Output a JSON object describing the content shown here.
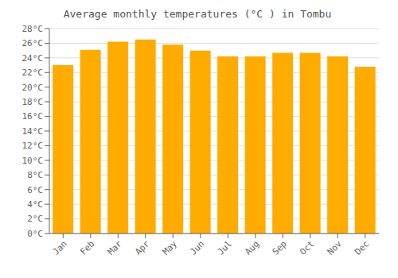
{
  "chart_data": {
    "type": "bar",
    "title": "Average monthly temperatures (°C ) in Tombu",
    "categories": [
      "Jan",
      "Feb",
      "Mar",
      "Apr",
      "May",
      "Jun",
      "Jul",
      "Aug",
      "Sep",
      "Oct",
      "Nov",
      "Dec"
    ],
    "values": [
      23.0,
      25.1,
      26.2,
      26.5,
      25.8,
      25.0,
      24.2,
      24.2,
      24.7,
      24.7,
      24.2,
      22.8
    ],
    "color": "#FFAB00",
    "ylim": [
      0,
      28
    ],
    "yticks": [
      {
        "value": 0,
        "label": "0°C"
      },
      {
        "value": 2,
        "label": "2°C"
      },
      {
        "value": 4,
        "label": "4°C"
      },
      {
        "value": 6,
        "label": "6°C"
      },
      {
        "value": 8,
        "label": "8°C"
      },
      {
        "value": 10,
        "label": "10°C"
      },
      {
        "value": 12,
        "label": "12°C"
      },
      {
        "value": 14,
        "label": "14°C"
      },
      {
        "value": 16,
        "label": "16°C"
      },
      {
        "value": 18,
        "label": "18°C"
      },
      {
        "value": 20,
        "label": "20°C"
      },
      {
        "value": 22,
        "label": "22°C"
      },
      {
        "value": 24,
        "label": "24°C"
      },
      {
        "value": 26,
        "label": "26°C"
      },
      {
        "value": 28,
        "label": "28°C"
      }
    ],
    "grid": true
  }
}
